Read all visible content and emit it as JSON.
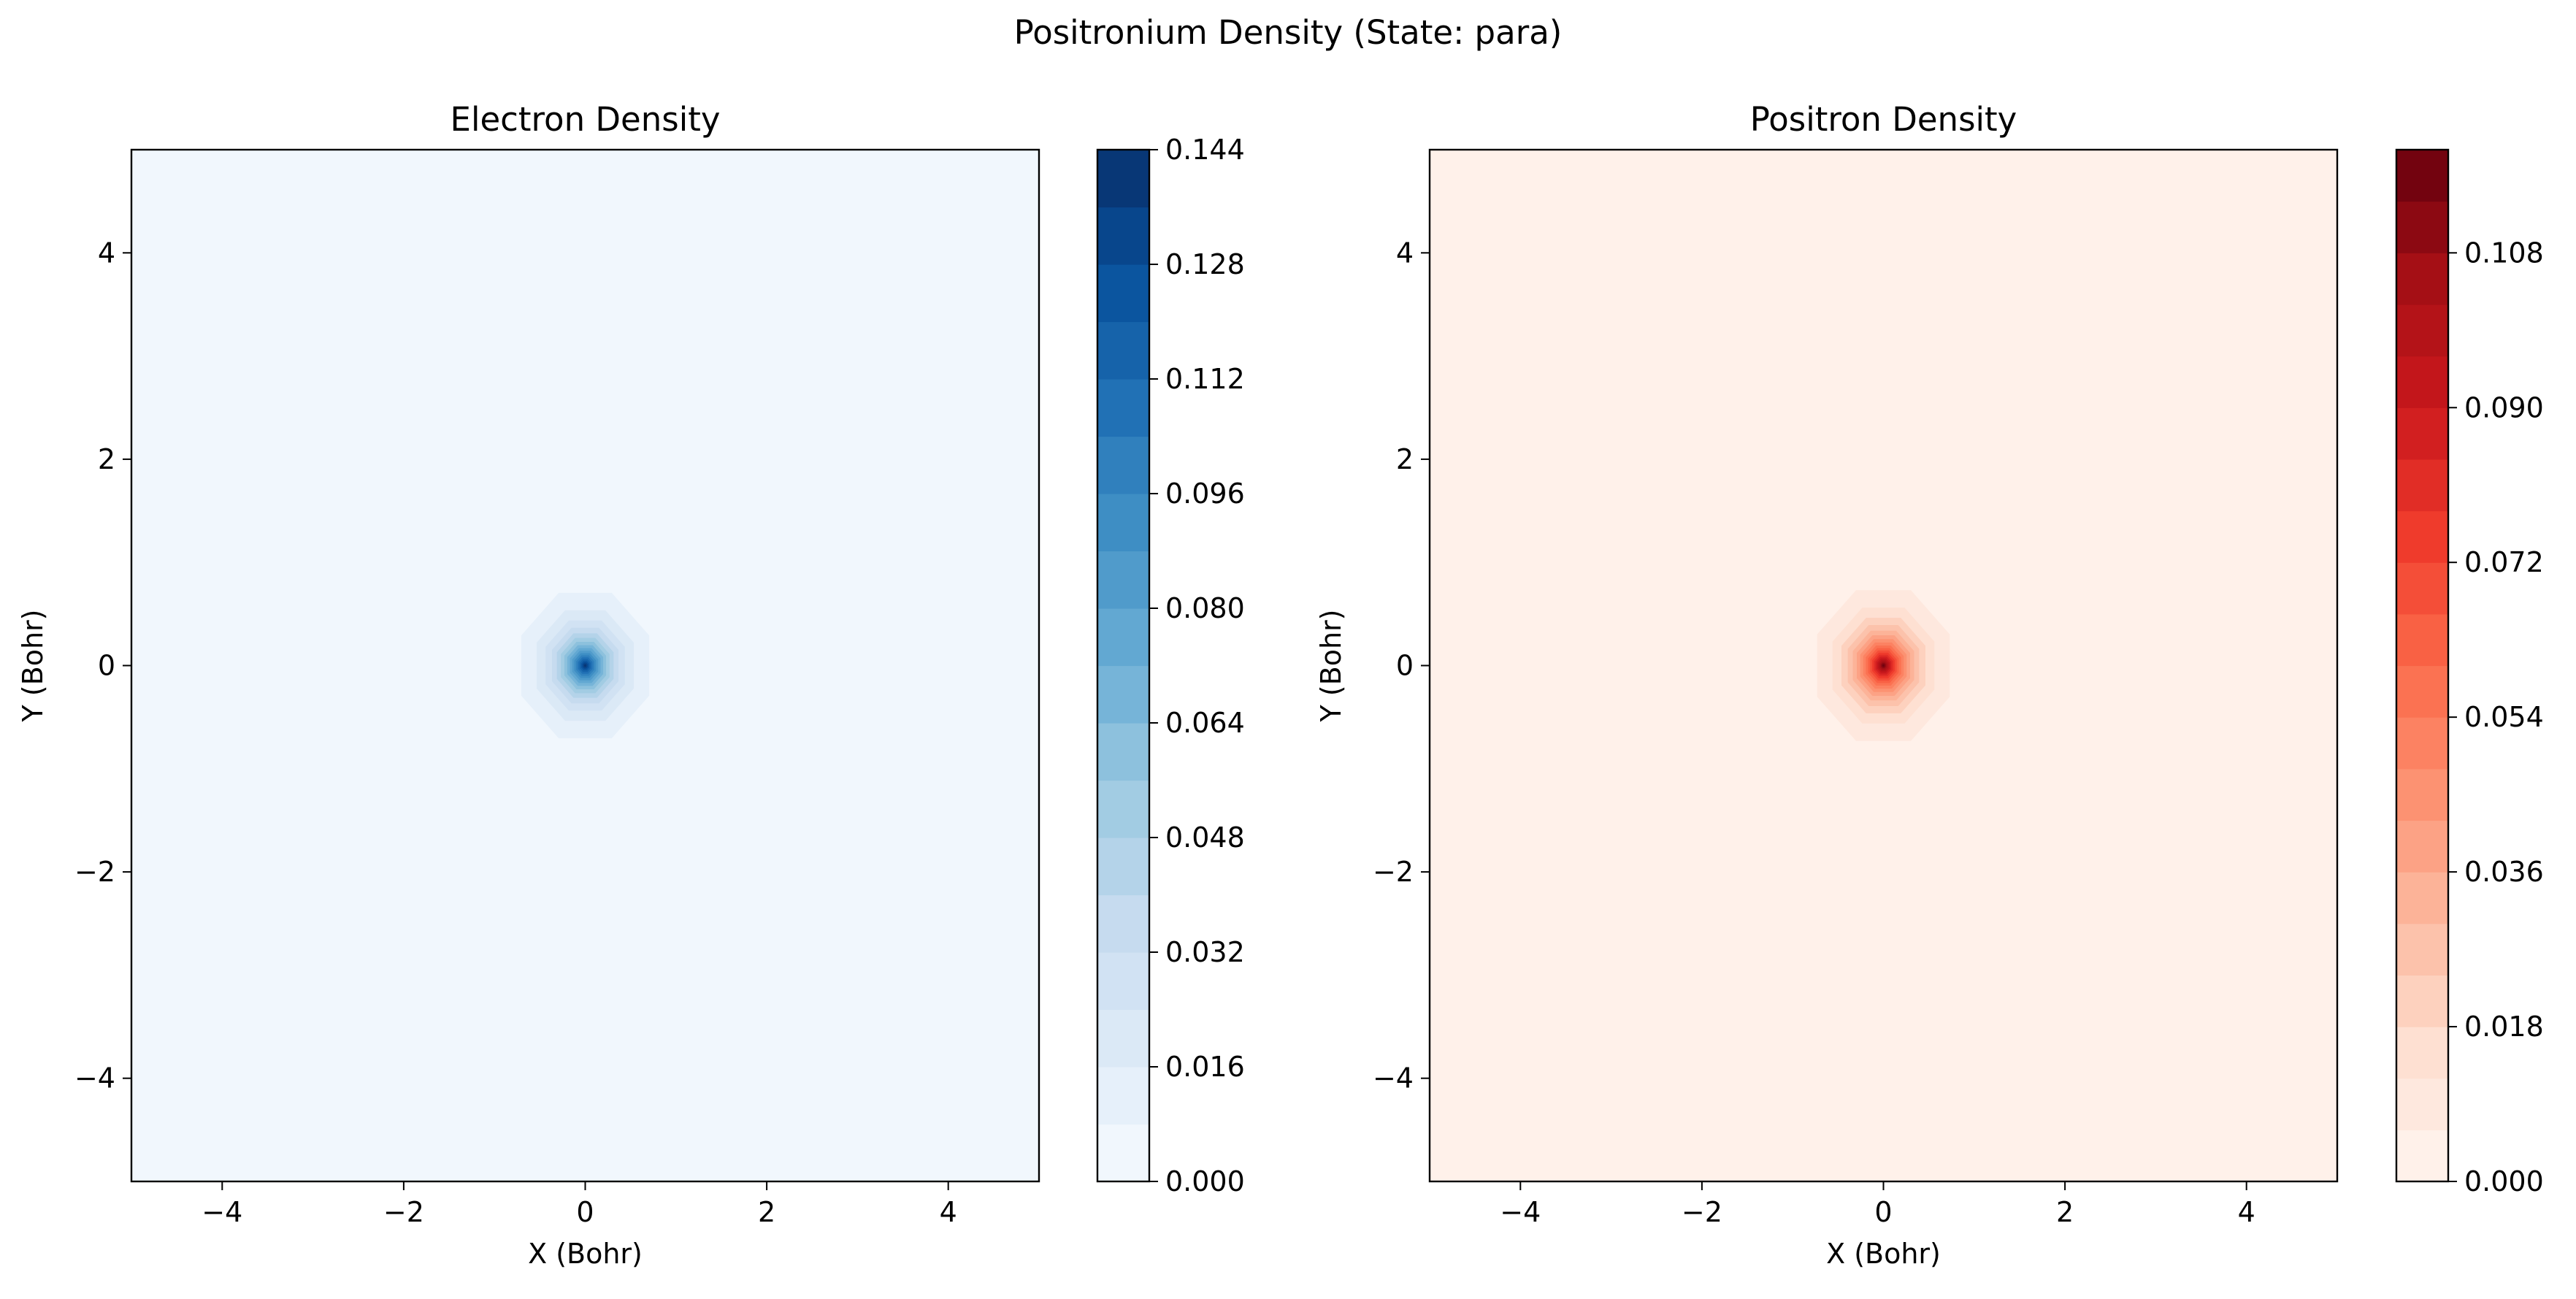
{
  "figure": {
    "suptitle": "Positronium Density (State: para)"
  },
  "chart_data": [
    {
      "type": "heatmap",
      "title": "Electron Density",
      "xlabel": "X (Bohr)",
      "ylabel": "Y (Bohr)",
      "xlim": [
        -5,
        5
      ],
      "ylim": [
        -5,
        5
      ],
      "xticks": [
        -4,
        -2,
        0,
        2,
        4
      ],
      "yticks": [
        -4,
        -2,
        0,
        2,
        4
      ],
      "x_tick_labels": [
        "−4",
        "−2",
        "0",
        "2",
        "4"
      ],
      "y_tick_labels": [
        "−4",
        "−2",
        "0",
        "2",
        "4"
      ],
      "colormap": "Blues",
      "colors": [
        "#f7fbff",
        "#deebf7",
        "#c6dbef",
        "#9ecae1",
        "#6baed6",
        "#4292c6",
        "#2171b5",
        "#08519c",
        "#08306b"
      ],
      "peak_center": [
        0,
        0
      ],
      "peak_value": 0.144,
      "levels": [
        0.0,
        0.008,
        0.016,
        0.024,
        0.032,
        0.04,
        0.048,
        0.056,
        0.064,
        0.072,
        0.08,
        0.088,
        0.096,
        0.104,
        0.112,
        0.12,
        0.128,
        0.136,
        0.144
      ],
      "colorbar": {
        "min": 0,
        "max": 0.144,
        "ticks": [
          0.0,
          0.016,
          0.032,
          0.048,
          0.064,
          0.08,
          0.096,
          0.112,
          0.128,
          0.144
        ],
        "tick_labels": [
          "0.000",
          "0.016",
          "0.032",
          "0.048",
          "0.064",
          "0.080",
          "0.096",
          "0.112",
          "0.128",
          "0.144"
        ]
      }
    },
    {
      "type": "heatmap",
      "title": "Positron Density",
      "xlabel": "X (Bohr)",
      "ylabel": "Y (Bohr)",
      "xlim": [
        -5,
        5
      ],
      "ylim": [
        -5,
        5
      ],
      "xticks": [
        -4,
        -2,
        0,
        2,
        4
      ],
      "yticks": [
        -4,
        -2,
        0,
        2,
        4
      ],
      "x_tick_labels": [
        "−4",
        "−2",
        "0",
        "2",
        "4"
      ],
      "y_tick_labels": [
        "−4",
        "−2",
        "0",
        "2",
        "4"
      ],
      "colormap": "Reds",
      "colors": [
        "#fff5f0",
        "#fee0d2",
        "#fcbba1",
        "#fc9272",
        "#fb6a4a",
        "#ef3b2c",
        "#cb181d",
        "#a50f15",
        "#67000d"
      ],
      "peak_center": [
        0,
        0
      ],
      "peak_value": 0.12,
      "levels": [
        0.0,
        0.006,
        0.012,
        0.018,
        0.024,
        0.03,
        0.036,
        0.042,
        0.048,
        0.054,
        0.06,
        0.066,
        0.072,
        0.078,
        0.084,
        0.09,
        0.096,
        0.102,
        0.108,
        0.114,
        0.12
      ],
      "colorbar": {
        "min": 0,
        "max": 0.12,
        "ticks": [
          0.0,
          0.018,
          0.036,
          0.054,
          0.072,
          0.09,
          0.108
        ],
        "tick_labels": [
          "0.000",
          "0.018",
          "0.036",
          "0.054",
          "0.072",
          "0.090",
          "0.108"
        ]
      }
    }
  ]
}
